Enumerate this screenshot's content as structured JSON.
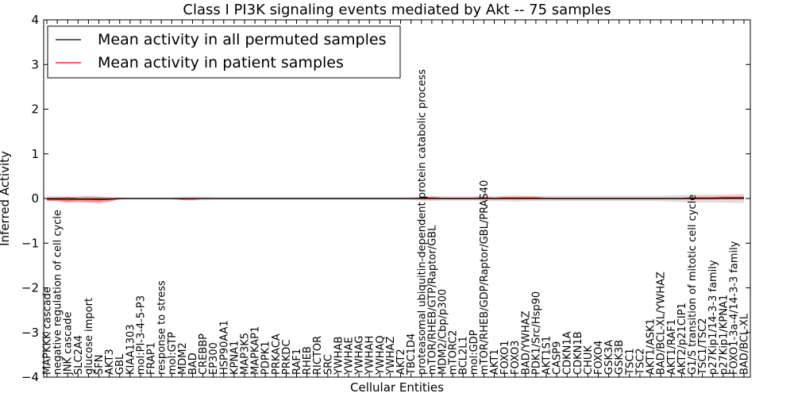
{
  "chart_data": {
    "type": "line",
    "title": "Class I PI3K signaling events mediated by Akt -- 75 samples",
    "xlabel": "Cellular Entities",
    "ylabel": "Inferred Activity",
    "ylim": [
      -4,
      4
    ],
    "yticks": [
      "-4",
      "-3",
      "-2",
      "-1",
      "0",
      "1",
      "2",
      "3",
      "4"
    ],
    "grid": false,
    "legend": {
      "placement": "top-left",
      "entries": [
        {
          "label": "Mean activity in all permuted samples",
          "color": "#000000"
        },
        {
          "label": "Mean activity in patient samples",
          "color": "#ff0000"
        }
      ]
    },
    "categories": [
      "MAPKKK cascade",
      "negative regulation of cell cycle",
      "JNK cascade",
      "SLC2A4",
      "glucose import",
      "SFN",
      "AKT3",
      "GBL",
      "KIAA1303",
      "mol:PI-3-4-5-P3",
      "FRAP1",
      "response to stress",
      "mol:GTP",
      "MDM2",
      "BAD",
      "CREBBP",
      "EP300",
      "HSP90AA1",
      "KPNA1",
      "MAP3K5",
      "MAPKAP1",
      "PDPK1",
      "PRKACA",
      "PRKDC",
      "RAF1",
      "RHEB",
      "RICTOR",
      "SRC",
      "YWHAB",
      "YWHAE",
      "YWHAG",
      "YWHAH",
      "YWHAQ",
      "YWHAZ",
      "AKT2",
      "TBC1D4",
      "proteasomal ubiquitin-dependent protein catabolic process",
      "mTOR/RHEB/GTP/Raptor/GBL",
      "MDM2/Cbp/p300",
      "mTORC2",
      "BCL2L1",
      "mol:GDP",
      "mTOR/RHEB/GDP/Raptor/GBL/PRAS40",
      "AKT1",
      "FOXO1",
      "FOXO3",
      "BAD/YWHAZ",
      "PDK1/Src/Hsp90",
      "AKT1S1",
      "CASP9",
      "CDKN1A",
      "CDKN1B",
      "CHUK",
      "FOXO4",
      "GSK3A",
      "GSK3B",
      "TSC1",
      "TSC2",
      "AKT1/ASK1",
      "BAD/BCL-XL/YWHAZ",
      "AKT1/RAF1",
      "AKT2/p21CIP1",
      "G1/S transition of mitotic cell cycle",
      "TSC1/TSC2",
      "p27Kip1/14-3-3 family",
      "p27Kip1/KPNA1",
      "FOXO1-3a-4/14-3-3 family",
      "BAD/BCL-XL"
    ],
    "series": [
      {
        "name": "Mean activity in all permuted samples",
        "color": "#000000",
        "values": [
          0.0,
          0.0,
          0.0,
          -0.01,
          -0.01,
          -0.01,
          -0.01,
          0.0,
          0.0,
          0.0,
          0.0,
          0.0,
          0.0,
          0.0,
          0.0,
          0.0,
          0.0,
          0.0,
          0.0,
          0.0,
          0.0,
          0.0,
          0.0,
          0.0,
          0.0,
          0.0,
          0.0,
          0.0,
          0.0,
          0.0,
          0.0,
          0.0,
          0.0,
          0.0,
          0.0,
          0.0,
          0.0,
          0.0,
          0.0,
          0.0,
          0.0,
          0.0,
          0.0,
          0.0,
          0.0,
          0.0,
          0.0,
          0.0,
          0.0,
          0.0,
          0.0,
          0.0,
          0.0,
          0.0,
          0.0,
          0.0,
          0.0,
          0.0,
          0.0,
          0.0,
          0.0,
          0.0,
          0.0,
          0.0,
          0.0,
          0.0,
          0.0,
          0.0
        ],
        "band": [
          0.06,
          0.05,
          0.05,
          0.04,
          0.04,
          0.04,
          0.03,
          0.02,
          0.02,
          0.02,
          0.02,
          0.02,
          0.02,
          0.04,
          0.05,
          0.04,
          0.03,
          0.03,
          0.03,
          0.03,
          0.03,
          0.03,
          0.03,
          0.03,
          0.03,
          0.03,
          0.03,
          0.03,
          0.03,
          0.03,
          0.03,
          0.03,
          0.03,
          0.03,
          0.03,
          0.03,
          0.05,
          0.06,
          0.05,
          0.05,
          0.05,
          0.05,
          0.06,
          0.06,
          0.06,
          0.07,
          0.06,
          0.06,
          0.06,
          0.06,
          0.06,
          0.06,
          0.06,
          0.06,
          0.06,
          0.06,
          0.06,
          0.06,
          0.06,
          0.06,
          0.07,
          0.08,
          0.08,
          0.09,
          0.09,
          0.09,
          0.1,
          0.1
        ]
      },
      {
        "name": "Mean activity in patient samples",
        "color": "#ff0000",
        "values": [
          -0.02,
          -0.02,
          -0.03,
          -0.02,
          -0.02,
          -0.03,
          -0.02,
          0.0,
          0.0,
          0.0,
          0.0,
          0.0,
          0.0,
          -0.01,
          -0.01,
          0.0,
          0.0,
          0.0,
          0.0,
          0.0,
          0.0,
          0.0,
          0.0,
          0.0,
          0.0,
          0.0,
          0.0,
          0.0,
          0.0,
          0.0,
          0.0,
          0.0,
          0.0,
          0.0,
          0.0,
          0.0,
          0.0,
          0.01,
          0.0,
          0.0,
          0.0,
          0.0,
          0.01,
          0.0,
          0.01,
          0.01,
          0.01,
          0.01,
          0.0,
          0.0,
          0.0,
          0.0,
          0.0,
          0.0,
          0.0,
          0.0,
          0.0,
          0.0,
          0.0,
          0.0,
          0.0,
          0.0,
          0.01,
          0.01,
          0.01,
          0.02,
          0.02,
          0.02
        ],
        "band": [
          0.03,
          0.04,
          0.06,
          0.06,
          0.07,
          0.07,
          0.05,
          0.02,
          0.01,
          0.01,
          0.01,
          0.01,
          0.01,
          0.02,
          0.02,
          0.01,
          0.01,
          0.01,
          0.01,
          0.01,
          0.01,
          0.01,
          0.01,
          0.01,
          0.01,
          0.01,
          0.01,
          0.01,
          0.01,
          0.01,
          0.01,
          0.01,
          0.01,
          0.01,
          0.01,
          0.01,
          0.02,
          0.03,
          0.02,
          0.02,
          0.02,
          0.02,
          0.03,
          0.02,
          0.03,
          0.03,
          0.03,
          0.03,
          0.02,
          0.02,
          0.02,
          0.02,
          0.02,
          0.02,
          0.02,
          0.02,
          0.02,
          0.02,
          0.02,
          0.02,
          0.02,
          0.02,
          0.03,
          0.03,
          0.03,
          0.03,
          0.03,
          0.03
        ]
      }
    ]
  }
}
